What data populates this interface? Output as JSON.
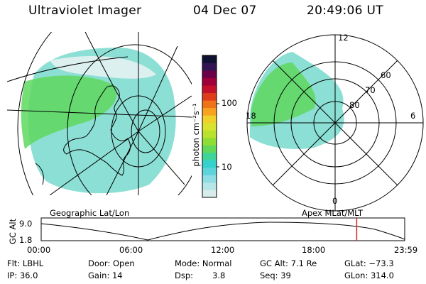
{
  "header": {
    "title": "Ultraviolet Imager",
    "date": "04 Dec 07",
    "time": "20:49:06 UT"
  },
  "colorbar": {
    "unit_label": "photon cm⁻²s⁻¹",
    "ticks": [
      "100",
      "10"
    ],
    "colors": [
      "#d8ecec",
      "#b7e6e8",
      "#8edde3",
      "#5fd3dc",
      "#36d0cd",
      "#3fd49a",
      "#62d85a",
      "#8fde35",
      "#b8e22d",
      "#d9e22c",
      "#f0d02a",
      "#f8a320",
      "#ef7318",
      "#de3c1a",
      "#c4102a",
      "#a0003a",
      "#6a0047",
      "#321452",
      "#101030"
    ]
  },
  "geo_map": {
    "label": "Geographic Lat/Lon"
  },
  "polar_plot": {
    "label": "Apex MLat/MLT",
    "mlt_labels": [
      "12",
      "18",
      "6",
      "0"
    ],
    "lat_labels": [
      "60",
      "70",
      "80"
    ]
  },
  "timeline": {
    "axis_label": "GC Alt",
    "y_ticks": [
      "9.0",
      "1.8"
    ],
    "x_ticks": [
      "00:00",
      "06:00",
      "12:00",
      "18:00",
      "23:59"
    ],
    "marker_time": "20:49",
    "marker_color": "#dd2222"
  },
  "info": {
    "flt": "Flt: LBHL",
    "ip": "IP: 36.0",
    "door": "Door: Open",
    "gain": "Gain: 14",
    "mode": "Mode: Normal",
    "dsp": "Dsp:",
    "dsp_value": "3.8",
    "gc_alt": "GC Alt: 7.1 Re",
    "seq": "Seq: 39",
    "glat": "GLat: −73.3",
    "glon": "GLon: 314.0"
  }
}
